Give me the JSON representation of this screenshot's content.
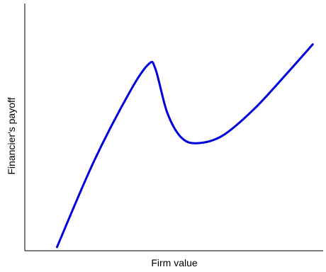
{
  "chart_data": {
    "type": "line",
    "title": "",
    "xlabel": "Firm value",
    "ylabel": "Financier's payoff",
    "show_ticks": false,
    "grid": false,
    "xlim": [
      0,
      100
    ],
    "ylim": [
      0,
      100
    ],
    "series": [
      {
        "color": "#0000dd",
        "points": [
          [
            10.8,
            1.5
          ],
          [
            23.1,
            36.0
          ],
          [
            35.3,
            64.5
          ],
          [
            41.5,
            75.5
          ],
          [
            43.8,
            73.5
          ],
          [
            47.7,
            56.0
          ],
          [
            52.3,
            46.0
          ],
          [
            57.6,
            43.5
          ],
          [
            66.2,
            46.5
          ],
          [
            77.0,
            57.5
          ],
          [
            88.8,
            73.0
          ],
          [
            96.5,
            83.5
          ]
        ]
      }
    ]
  }
}
